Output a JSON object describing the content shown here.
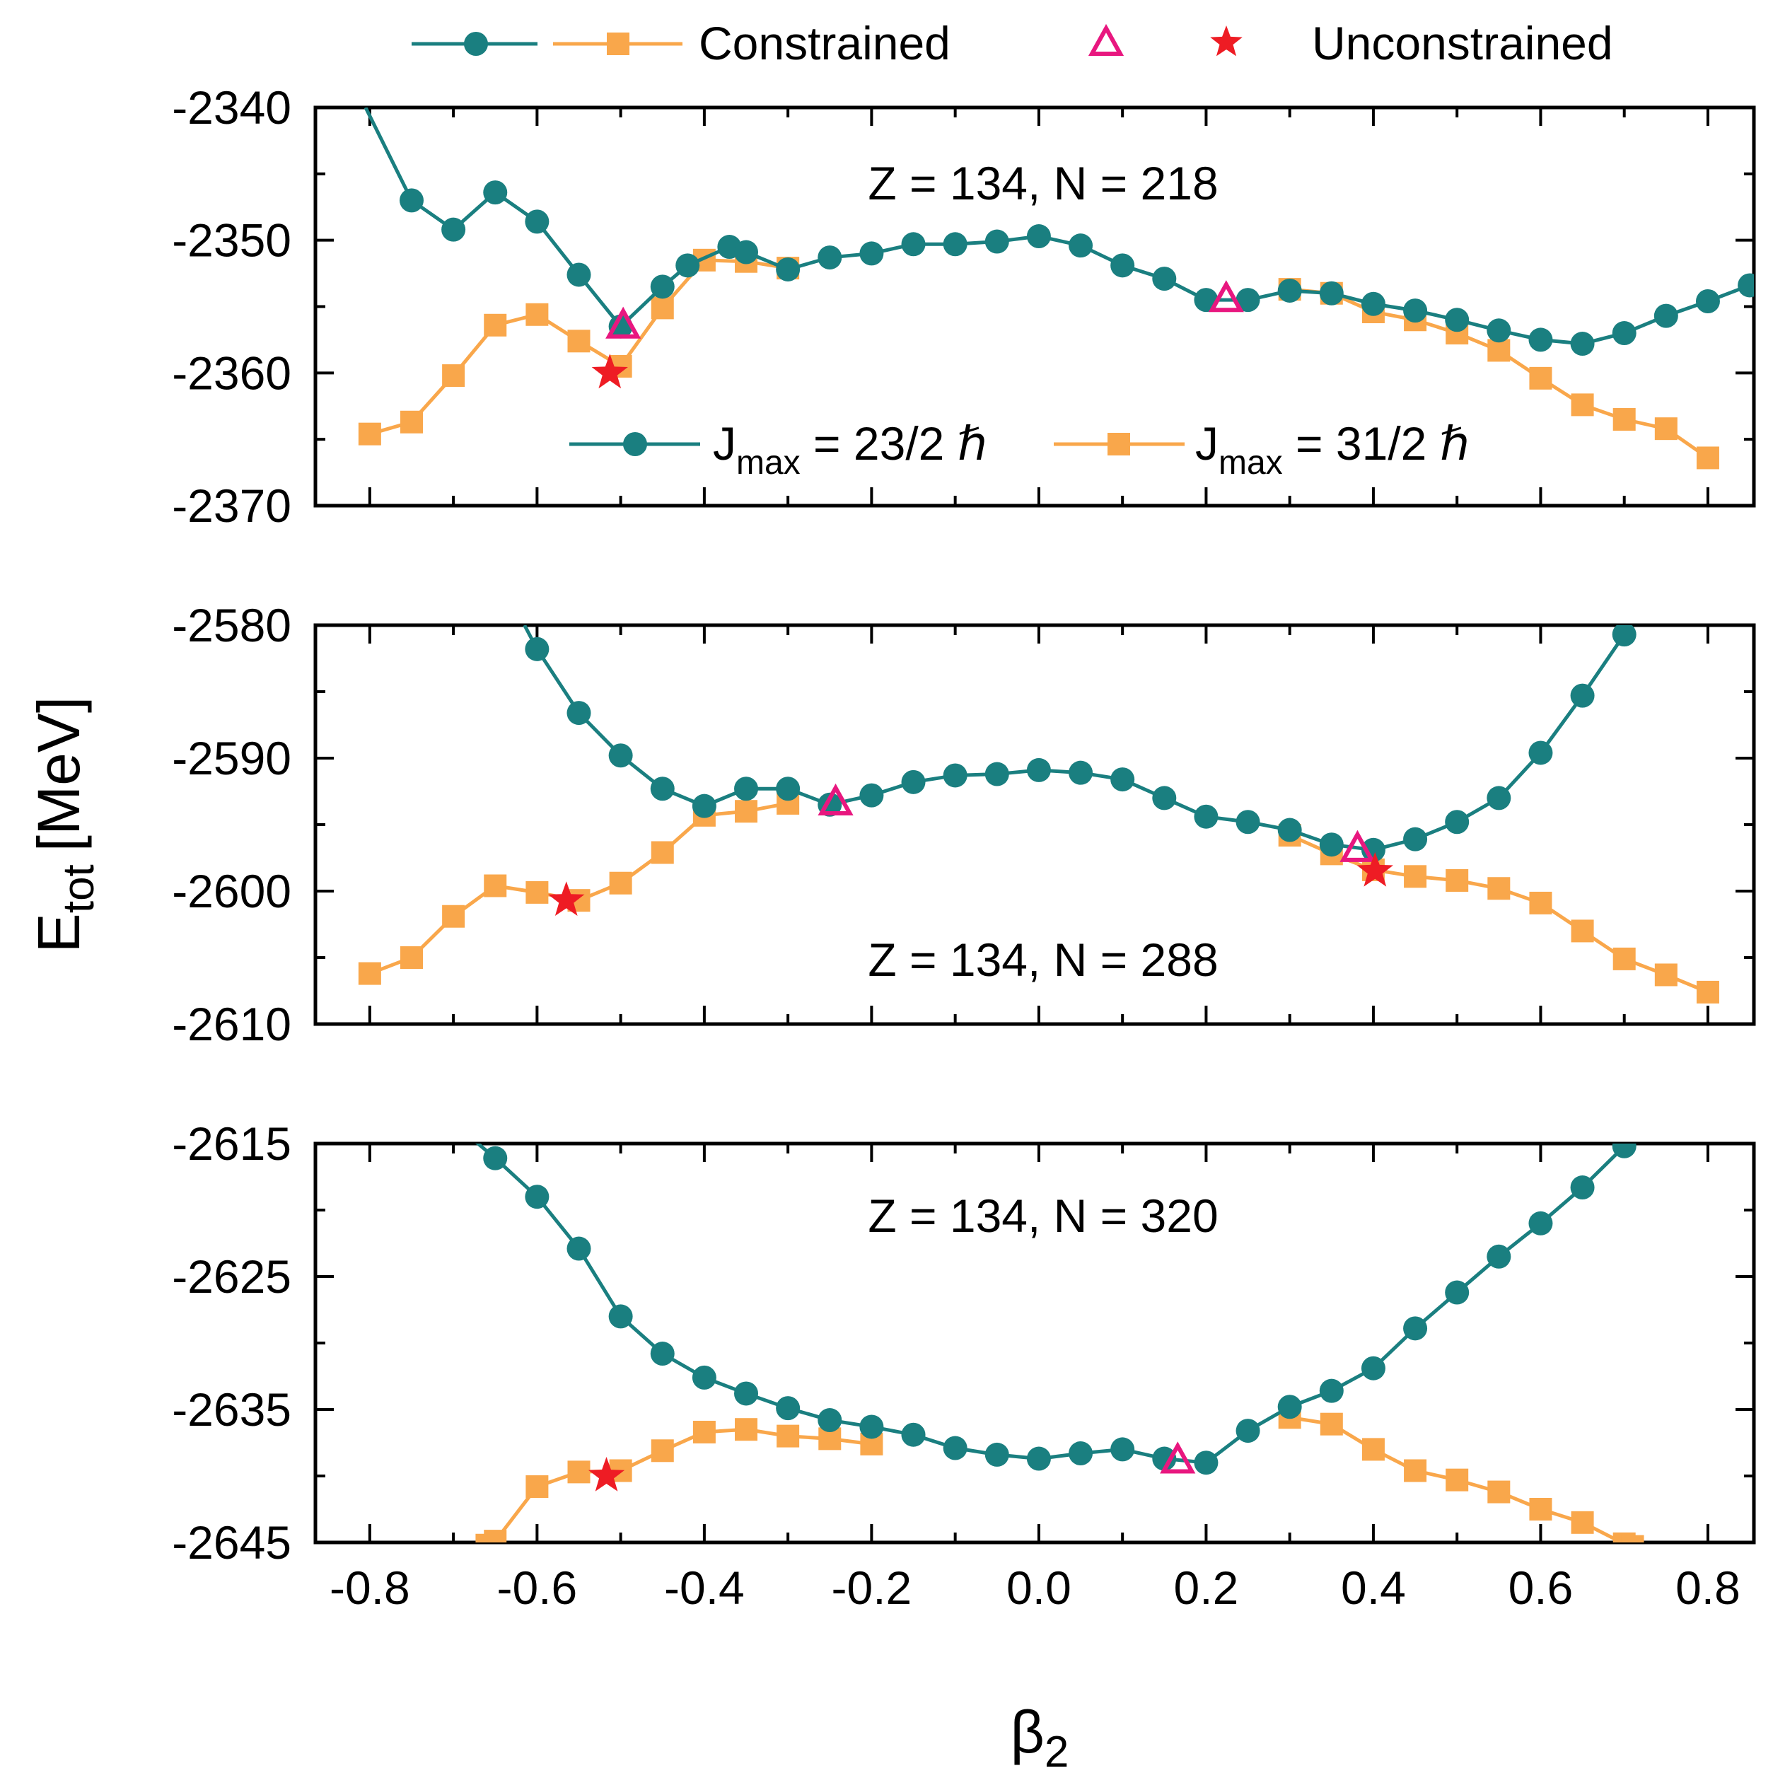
{
  "chart_data": {
    "type": "line",
    "xlabel": "β",
    "xlabel_sub": "2",
    "ylabel": "E",
    "ylabel_sub": "tot",
    "ylabel_unit": "[MeV]",
    "xlim": [
      -0.865,
      0.855
    ],
    "xticks": [
      "-0.8",
      "-0.6",
      "-0.4",
      "-0.2",
      "0.0",
      "0.2",
      "0.4",
      "0.6",
      "0.8"
    ],
    "xtick_values": [
      -0.8,
      -0.6,
      -0.4,
      -0.2,
      0.0,
      0.2,
      0.4,
      0.6,
      0.8
    ],
    "colors": {
      "teal": "#1a7f80",
      "orange": "#f9a74b",
      "triangle": "#e8177f",
      "star": "#ee1c24"
    },
    "legend_top": {
      "constrained_label": "Constrained",
      "unconstrained_label": "Unconstrained"
    },
    "legend_inner": {
      "series1": {
        "main": "J",
        "sub": "max",
        "rest": " = 23/2 ℏ"
      },
      "series2": {
        "main": "J",
        "sub": "max",
        "rest": " = 31/2 ℏ"
      }
    },
    "panels": [
      {
        "title": "Z = 134, N = 218",
        "ylim": [
          -2370,
          -2340
        ],
        "yticks": [
          "-2340",
          "-2350",
          "-2360",
          "-2370"
        ],
        "ytick_values": [
          -2340,
          -2350,
          -2360,
          -2370
        ],
        "teal_start": [
          -0.805,
          -2340
        ],
        "teal": [
          [
            -0.75,
            -2347.0
          ],
          [
            -0.7,
            -2349.2
          ],
          [
            -0.65,
            -2346.4
          ],
          [
            -0.6,
            -2348.6
          ],
          [
            -0.55,
            -2352.6
          ],
          [
            -0.5,
            -2356.5
          ],
          [
            -0.45,
            -2353.5
          ],
          [
            -0.42,
            -2351.9
          ],
          [
            -0.37,
            -2350.5
          ],
          [
            -0.35,
            -2350.9
          ],
          [
            -0.3,
            -2352.2
          ],
          [
            -0.25,
            -2351.3
          ],
          [
            -0.2,
            -2351.0
          ],
          [
            -0.15,
            -2350.3
          ],
          [
            -0.1,
            -2350.3
          ],
          [
            -0.05,
            -2350.1
          ],
          [
            0.0,
            -2349.7
          ],
          [
            0.05,
            -2350.4
          ],
          [
            0.1,
            -2351.9
          ],
          [
            0.15,
            -2352.9
          ],
          [
            0.2,
            -2354.5
          ],
          [
            0.25,
            -2354.5
          ],
          [
            0.3,
            -2353.8
          ],
          [
            0.35,
            -2354.0
          ],
          [
            0.4,
            -2354.8
          ],
          [
            0.45,
            -2355.3
          ],
          [
            0.5,
            -2356.0
          ],
          [
            0.55,
            -2356.8
          ],
          [
            0.6,
            -2357.5
          ],
          [
            0.65,
            -2357.8
          ],
          [
            0.7,
            -2357.0
          ],
          [
            0.75,
            -2355.7
          ],
          [
            0.8,
            -2354.6
          ],
          [
            0.85,
            -2353.4
          ]
        ],
        "orange": [
          [
            -0.8,
            -2364.6
          ],
          [
            -0.75,
            -2363.7
          ],
          [
            -0.7,
            -2360.2
          ],
          [
            -0.65,
            -2356.4
          ],
          [
            -0.6,
            -2355.6
          ],
          [
            -0.55,
            -2357.6
          ],
          [
            -0.5,
            -2359.5
          ],
          [
            -0.45,
            -2355.1
          ],
          [
            -0.4,
            -2351.5
          ],
          [
            -0.35,
            -2351.6
          ],
          [
            -0.3,
            -2352.1
          ],
          [
            0.3,
            -2353.7
          ],
          [
            0.35,
            -2354.0
          ],
          [
            0.4,
            -2355.4
          ],
          [
            0.45,
            -2356.0
          ],
          [
            0.5,
            -2357.0
          ],
          [
            0.55,
            -2358.3
          ],
          [
            0.6,
            -2360.4
          ],
          [
            0.65,
            -2362.4
          ],
          [
            0.7,
            -2363.5
          ],
          [
            0.75,
            -2364.2
          ],
          [
            0.8,
            -2366.4
          ]
        ],
        "triangles": [
          [
            -0.497,
            -2356.4
          ],
          [
            0.224,
            -2354.4
          ]
        ],
        "stars": [
          [
            -0.513,
            -2360.0
          ]
        ]
      },
      {
        "title": "Z = 134, N = 288",
        "ylim": [
          -2610,
          -2580
        ],
        "yticks": [
          "-2580",
          "-2590",
          "-2600",
          "-2610"
        ],
        "ytick_values": [
          -2580,
          -2590,
          -2600,
          -2610
        ],
        "teal_start": [
          -0.615,
          -2580
        ],
        "teal": [
          [
            -0.6,
            -2581.8
          ],
          [
            -0.55,
            -2586.6
          ],
          [
            -0.5,
            -2589.8
          ],
          [
            -0.45,
            -2592.3
          ],
          [
            -0.4,
            -2593.6
          ],
          [
            -0.35,
            -2592.3
          ],
          [
            -0.3,
            -2592.3
          ],
          [
            -0.25,
            -2593.5
          ],
          [
            -0.2,
            -2592.8
          ],
          [
            -0.15,
            -2591.8
          ],
          [
            -0.1,
            -2591.3
          ],
          [
            -0.05,
            -2591.2
          ],
          [
            0.0,
            -2590.9
          ],
          [
            0.05,
            -2591.1
          ],
          [
            0.1,
            -2591.6
          ],
          [
            0.15,
            -2593.0
          ],
          [
            0.2,
            -2594.4
          ],
          [
            0.25,
            -2594.8
          ],
          [
            0.3,
            -2595.4
          ],
          [
            0.35,
            -2596.5
          ],
          [
            0.4,
            -2596.9
          ],
          [
            0.45,
            -2596.1
          ],
          [
            0.5,
            -2594.8
          ],
          [
            0.55,
            -2593.0
          ],
          [
            0.6,
            -2589.6
          ],
          [
            0.65,
            -2585.3
          ],
          [
            0.7,
            -2580.7
          ]
        ],
        "orange": [
          [
            -0.8,
            -2606.2
          ],
          [
            -0.75,
            -2605.0
          ],
          [
            -0.7,
            -2601.9
          ],
          [
            -0.65,
            -2599.6
          ],
          [
            -0.6,
            -2600.1
          ],
          [
            -0.55,
            -2600.7
          ],
          [
            -0.5,
            -2599.4
          ],
          [
            -0.45,
            -2597.1
          ],
          [
            -0.4,
            -2594.3
          ],
          [
            -0.35,
            -2594.0
          ],
          [
            -0.3,
            -2593.4
          ],
          [
            0.3,
            -2595.8
          ],
          [
            0.35,
            -2597.2
          ],
          [
            0.4,
            -2598.4
          ],
          [
            0.45,
            -2598.9
          ],
          [
            0.5,
            -2599.2
          ],
          [
            0.55,
            -2599.8
          ],
          [
            0.6,
            -2600.9
          ],
          [
            0.65,
            -2603.0
          ],
          [
            0.7,
            -2605.1
          ],
          [
            0.75,
            -2606.3
          ],
          [
            0.8,
            -2607.6
          ]
        ],
        "triangles": [
          [
            -0.243,
            -2593.3
          ],
          [
            0.381,
            -2596.8
          ]
        ],
        "stars": [
          [
            -0.565,
            -2600.7
          ],
          [
            0.402,
            -2598.5
          ]
        ]
      },
      {
        "title": "Z = 134, N = 320",
        "ylim": [
          -2645,
          -2615
        ],
        "yticks": [
          "-2615",
          "-2625",
          "-2635",
          "-2645"
        ],
        "ytick_values": [
          -2615,
          -2625,
          -2635,
          -2645
        ],
        "teal_start": [
          -0.68,
          -2614.5
        ],
        "teal_end": [
          0.72,
          -2614.5
        ],
        "teal": [
          [
            -0.65,
            -2616.1
          ],
          [
            -0.6,
            -2619.0
          ],
          [
            -0.55,
            -2622.9
          ],
          [
            -0.5,
            -2628.0
          ],
          [
            -0.45,
            -2630.8
          ],
          [
            -0.4,
            -2632.6
          ],
          [
            -0.35,
            -2633.8
          ],
          [
            -0.3,
            -2634.9
          ],
          [
            -0.25,
            -2635.8
          ],
          [
            -0.2,
            -2636.3
          ],
          [
            -0.15,
            -2636.9
          ],
          [
            -0.1,
            -2637.9
          ],
          [
            -0.05,
            -2638.4
          ],
          [
            0.0,
            -2638.7
          ],
          [
            0.05,
            -2638.3
          ],
          [
            0.1,
            -2638.0
          ],
          [
            0.15,
            -2638.7
          ],
          [
            0.2,
            -2639.0
          ],
          [
            0.25,
            -2636.6
          ],
          [
            0.3,
            -2634.8
          ],
          [
            0.35,
            -2633.6
          ],
          [
            0.4,
            -2631.9
          ],
          [
            0.45,
            -2628.9
          ],
          [
            0.5,
            -2626.2
          ],
          [
            0.55,
            -2623.5
          ],
          [
            0.6,
            -2621.0
          ],
          [
            0.65,
            -2618.3
          ],
          [
            0.7,
            -2615.2
          ]
        ],
        "orange": [
          [
            -0.66,
            -2645.2
          ],
          [
            -0.65,
            -2644.9
          ],
          [
            -0.6,
            -2640.8
          ],
          [
            -0.55,
            -2639.7
          ],
          [
            -0.5,
            -2639.6
          ],
          [
            -0.45,
            -2638.1
          ],
          [
            -0.4,
            -2636.7
          ],
          [
            -0.35,
            -2636.5
          ],
          [
            -0.3,
            -2637.0
          ],
          [
            -0.25,
            -2637.2
          ],
          [
            -0.2,
            -2637.6
          ],
          [
            0.3,
            -2635.6
          ],
          [
            0.35,
            -2636.1
          ],
          [
            0.4,
            -2638.0
          ],
          [
            0.45,
            -2639.6
          ],
          [
            0.5,
            -2640.3
          ],
          [
            0.55,
            -2641.2
          ],
          [
            0.6,
            -2642.5
          ],
          [
            0.65,
            -2643.5
          ],
          [
            0.7,
            -2645.1
          ],
          [
            0.71,
            -2645.3
          ]
        ],
        "triangles": [
          [
            0.166,
            -2638.8
          ]
        ],
        "stars": [
          [
            -0.517,
            -2640.0
          ]
        ]
      }
    ]
  }
}
